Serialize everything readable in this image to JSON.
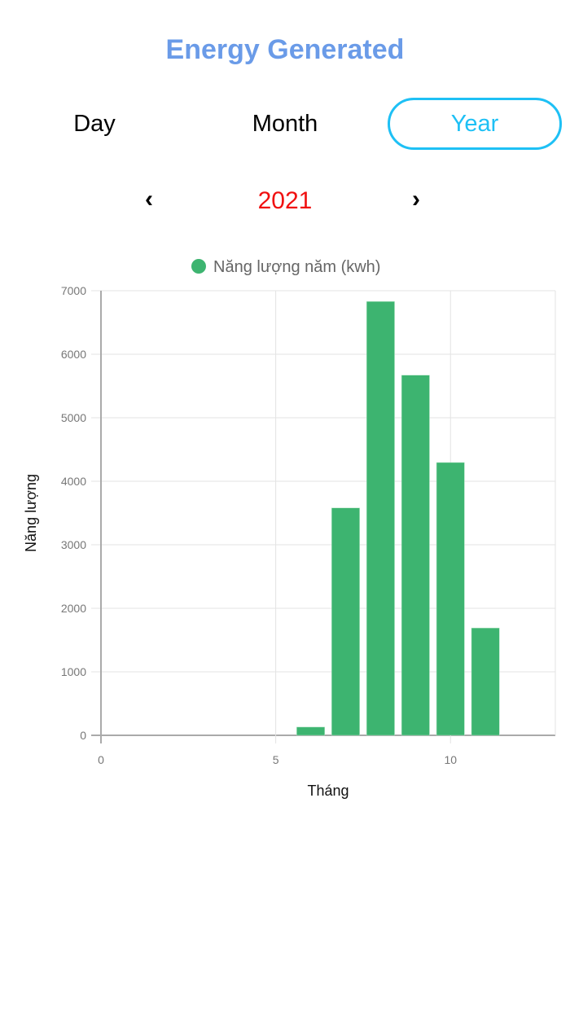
{
  "header": {
    "title": "Energy Generated"
  },
  "tabs": [
    {
      "label": "Day",
      "active": false
    },
    {
      "label": "Month",
      "active": false
    },
    {
      "label": "Year",
      "active": true
    }
  ],
  "period": {
    "value": "2021",
    "prev_icon": "chevron-left-icon",
    "next_icon": "chevron-right-icon",
    "prev_label": "‹",
    "next_label": "›"
  },
  "colors": {
    "title": "#6a9be8",
    "accent": "#1ec0f5",
    "year": "#f01010",
    "bar": "#3db470"
  },
  "chart_data": {
    "type": "bar",
    "legend": "Năng lượng năm (kwh)",
    "legend_position": "top",
    "xlabel": "Tháng",
    "ylabel": "Năng lượng",
    "x": [
      6,
      7,
      8,
      9,
      10,
      11
    ],
    "values": [
      130,
      3580,
      6830,
      5670,
      4295,
      1690
    ],
    "xlim": [
      0,
      13
    ],
    "ylim": [
      0,
      7000
    ],
    "xticks": [
      "0",
      "5",
      "10"
    ],
    "yticks": [
      "0",
      "1000",
      "2000",
      "3000",
      "4000",
      "5000",
      "6000",
      "7000"
    ],
    "grid": true
  }
}
